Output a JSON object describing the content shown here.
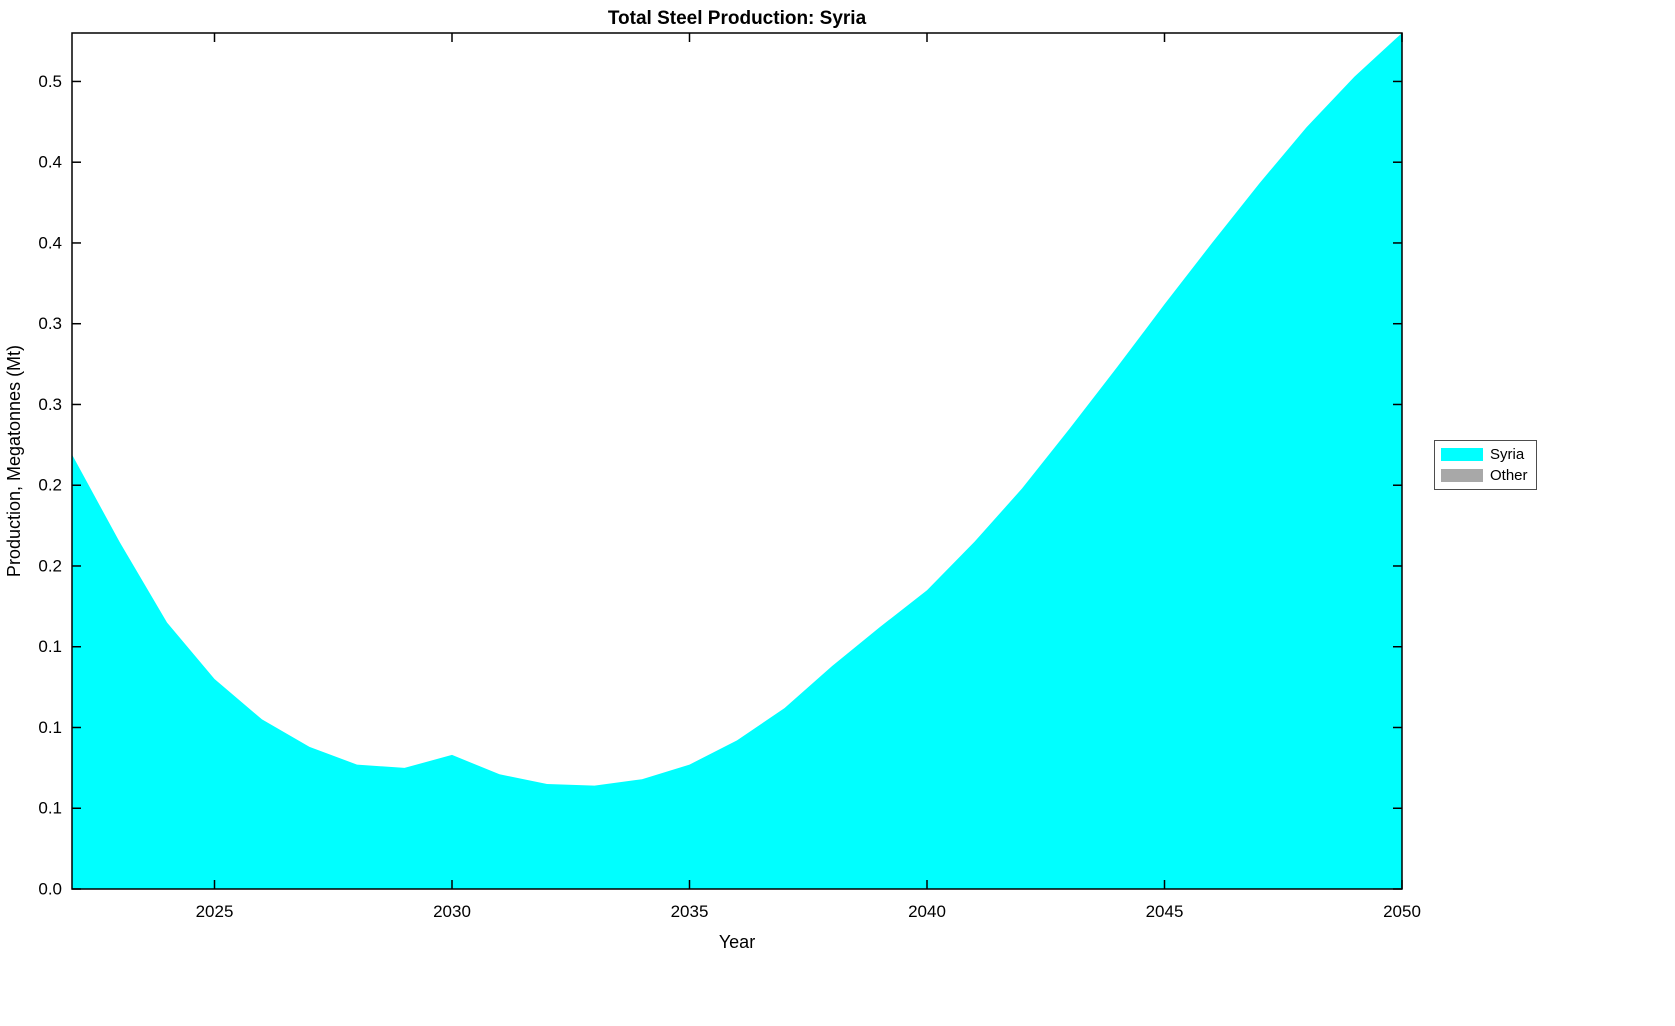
{
  "chart_data": {
    "type": "area",
    "title": "Total Steel Production: Syria",
    "xlabel": "Year",
    "ylabel": "Production, Megatonnes (Mt)",
    "xlim": [
      2022,
      2050
    ],
    "ylim": [
      0,
      0.53
    ],
    "grid": false,
    "x_ticks": [
      2025,
      2030,
      2035,
      2040,
      2045,
      2050
    ],
    "y_tick_values": [
      0,
      0.05,
      0.1,
      0.15,
      0.2,
      0.25,
      0.3,
      0.35,
      0.4,
      0.45,
      0.5
    ],
    "y_tick_labels": [
      "0.0",
      "0.1",
      "0.1",
      "0.1",
      "0.2",
      "0.2",
      "0.3",
      "0.3",
      "0.4",
      "0.4",
      "0.5"
    ],
    "legend": {
      "position": "right-outside",
      "entries": [
        {
          "label": "Syria",
          "color": "#00FFFF"
        },
        {
          "label": "Other",
          "color": "#A8A8A8"
        }
      ]
    },
    "series": [
      {
        "name": "Syria",
        "color": "#00FFFF",
        "x": [
          2022,
          2023,
          2024,
          2025,
          2026,
          2027,
          2028,
          2029,
          2030,
          2031,
          2032,
          2033,
          2034,
          2035,
          2036,
          2037,
          2038,
          2039,
          2040,
          2041,
          2042,
          2043,
          2044,
          2045,
          2046,
          2047,
          2048,
          2049,
          2050
        ],
        "values": [
          0.269,
          0.215,
          0.165,
          0.13,
          0.105,
          0.088,
          0.077,
          0.075,
          0.083,
          0.071,
          0.065,
          0.064,
          0.068,
          0.077,
          0.092,
          0.112,
          0.138,
          0.162,
          0.185,
          0.215,
          0.248,
          0.285,
          0.323,
          0.362,
          0.4,
          0.437,
          0.472,
          0.503,
          0.53
        ]
      },
      {
        "name": "Other",
        "color": "#A8A8A8",
        "x": [],
        "values": []
      }
    ]
  }
}
